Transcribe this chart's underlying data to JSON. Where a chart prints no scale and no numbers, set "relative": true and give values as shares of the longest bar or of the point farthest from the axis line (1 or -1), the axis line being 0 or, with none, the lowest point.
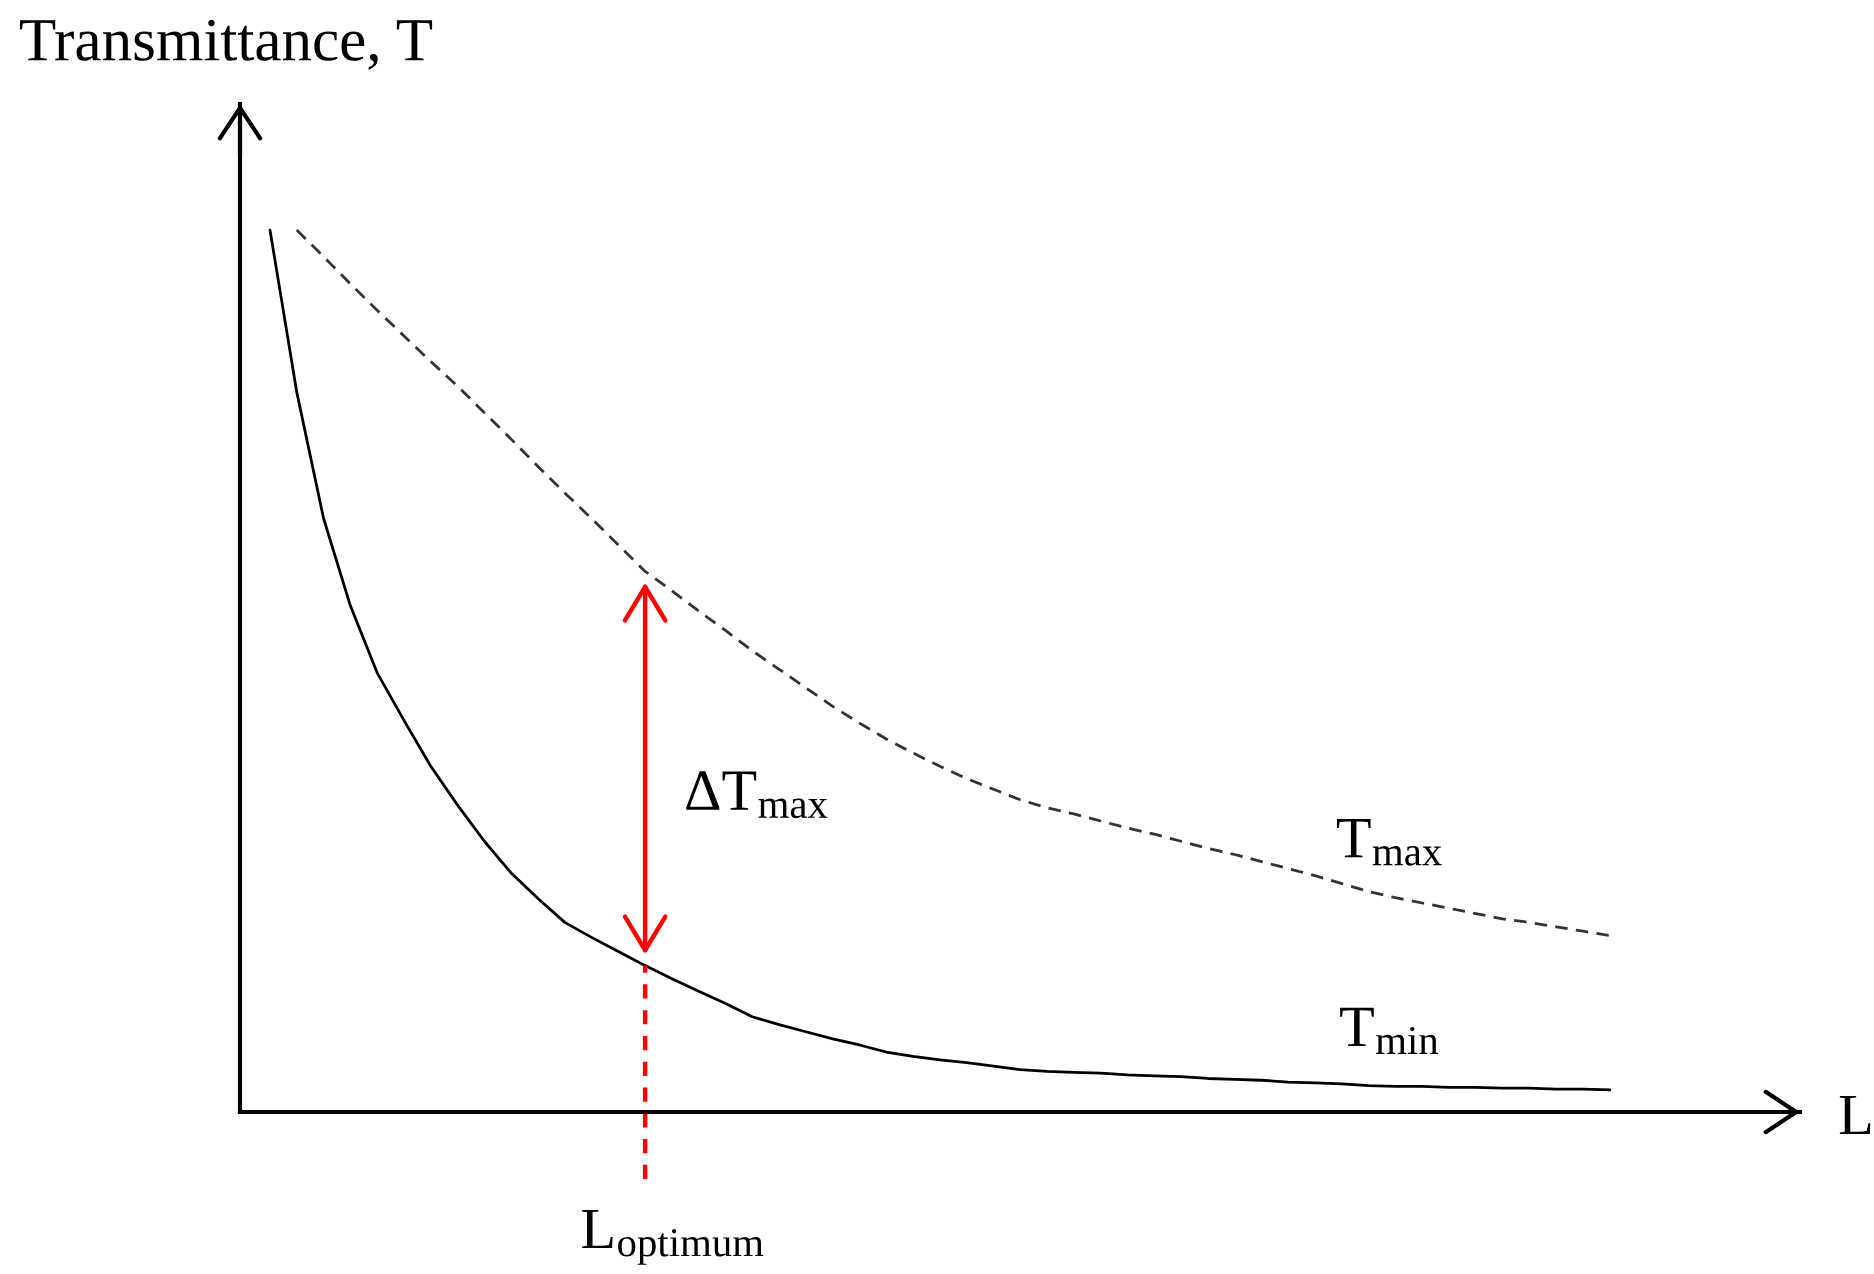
{
  "chart_data": {
    "type": "line",
    "relative": true,
    "xlabel": "L",
    "ylabel": "Transmittance, T",
    "categories": [
      null,
      null,
      null,
      null,
      null,
      null,
      null,
      null,
      null,
      null,
      null,
      null,
      null,
      null,
      null,
      null,
      null,
      null,
      null,
      null,
      null,
      null,
      null,
      null,
      null,
      null,
      null,
      null,
      null,
      null,
      null,
      null,
      null,
      null,
      null,
      null,
      null,
      null,
      null,
      null,
      null,
      null,
      null,
      null,
      null,
      null,
      null,
      null,
      null,
      null,
      null
    ],
    "series": [
      {
        "name": "T$_{min}$",
        "color": "#000000",
        "line_style": "solid",
        "values": [
          1.0,
          0.816,
          0.673,
          0.574,
          0.498,
          0.444,
          0.392,
          0.348,
          0.307,
          0.271,
          0.242,
          0.215,
          0.198,
          0.182,
          0.166,
          0.151,
          0.137,
          0.123,
          0.108,
          0.099,
          0.091,
          0.083,
          0.076,
          0.068,
          0.063,
          0.059,
          0.056,
          0.052,
          0.048,
          0.046,
          0.045,
          0.044,
          0.042,
          0.041,
          0.04,
          0.038,
          0.037,
          0.036,
          0.034,
          0.033,
          0.032,
          0.03,
          0.029,
          0.029,
          0.028,
          0.028,
          0.027,
          0.027,
          0.026,
          0.026,
          0.025
        ]
      },
      {
        "name": "T$_{max}$",
        "color": "#333333",
        "line_style": "dashed",
        "values": [
          null,
          1.0,
          0.97,
          0.939,
          0.909,
          0.88,
          0.851,
          0.823,
          0.793,
          0.763,
          0.732,
          0.702,
          0.673,
          0.643,
          0.613,
          0.591,
          0.568,
          0.546,
          0.523,
          0.502,
          0.481,
          0.46,
          0.441,
          0.423,
          0.407,
          0.392,
          0.378,
          0.366,
          0.354,
          0.345,
          0.338,
          0.33,
          0.322,
          0.315,
          0.307,
          0.299,
          0.292,
          0.284,
          0.276,
          0.268,
          0.259,
          0.25,
          0.243,
          0.237,
          0.231,
          0.225,
          0.219,
          0.215,
          0.21,
          0.205,
          0.2
        ]
      }
    ],
    "annotations": [
      "L$_{optimum}$",
      "ΔT$_{max}$"
    ]
  }
}
